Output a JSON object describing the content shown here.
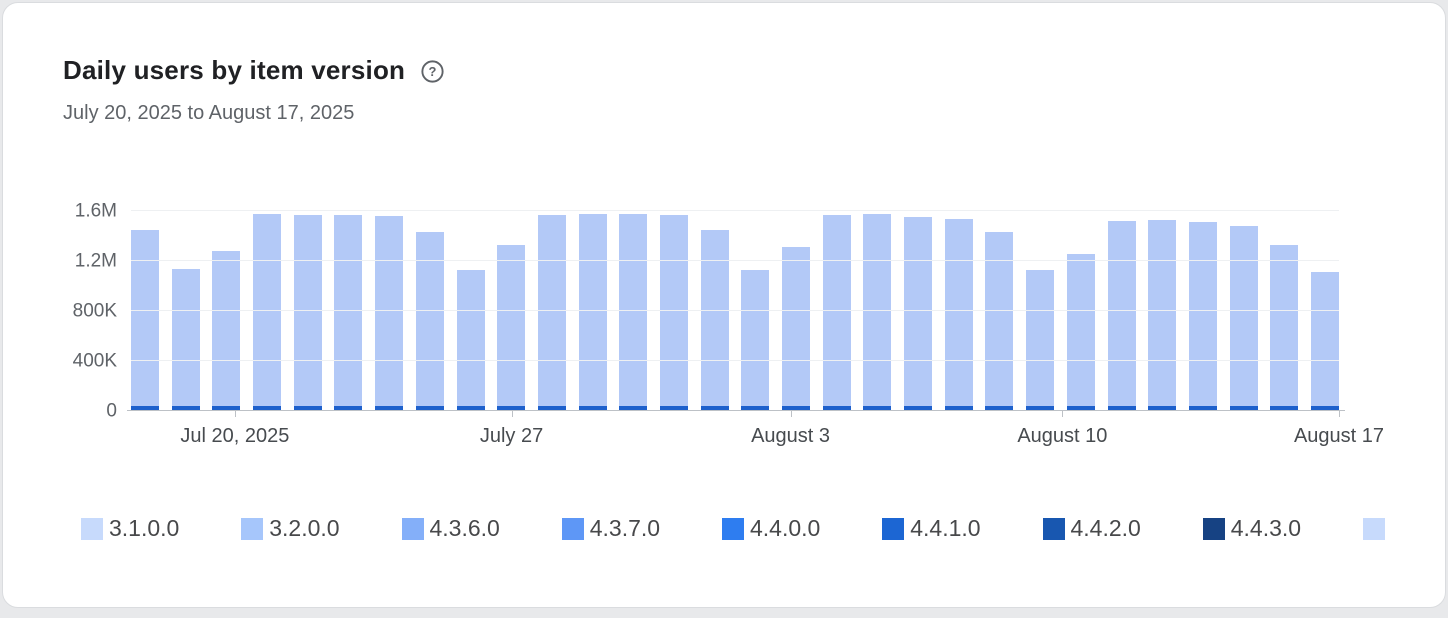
{
  "page": {
    "title": "Daily users by item version",
    "date_range": "July 20, 2025 to August 17, 2025"
  },
  "icons": {
    "help": "help-circle-outline"
  },
  "colors": {
    "axis": "#bdc1c6",
    "grid": "#eef0f2",
    "text_secondary": "#5f6368",
    "card_background": "#ffffff",
    "page_background": "#e8e9eb"
  },
  "chart_data": {
    "type": "bar",
    "stacked": true,
    "title": "Daily users by item version",
    "subtitle": "July 20, 2025 to August 17, 2025",
    "xlabel": "",
    "ylabel": "",
    "ylim": [
      0,
      1600000
    ],
    "grid": true,
    "legend_position": "bottom",
    "y_ticks": [
      {
        "label": "1.6M",
        "value": 1600000
      },
      {
        "label": "1.2M",
        "value": 1200000
      },
      {
        "label": "800K",
        "value": 800000
      },
      {
        "label": "400K",
        "value": 400000
      },
      {
        "label": "0",
        "value": 0
      }
    ],
    "x_ticks": [
      {
        "label": "Jul 20, 2025",
        "pos": 0.086
      },
      {
        "label": "July 27",
        "pos": 0.315
      },
      {
        "label": "August 3",
        "pos": 0.546
      },
      {
        "label": "August 10",
        "pos": 0.771
      },
      {
        "label": "August 17",
        "pos": 1.0
      }
    ],
    "totals": [
      1450000,
      1140000,
      1280000,
      1580000,
      1570000,
      1570000,
      1560000,
      1430000,
      1130000,
      1330000,
      1570000,
      1580000,
      1580000,
      1570000,
      1450000,
      1130000,
      1310000,
      1570000,
      1580000,
      1550000,
      1540000,
      1430000,
      1130000,
      1260000,
      1520000,
      1530000,
      1510000,
      1480000,
      1330000,
      1110000
    ],
    "series_bottom_to_top": [
      {
        "name": "4.4.3.0",
        "color": "#164283",
        "values": [
          12000,
          12000,
          12000,
          12000,
          12000,
          12000,
          12000,
          12000,
          12000,
          12000,
          12000,
          12000,
          12000,
          12000,
          12000,
          12000,
          12000,
          12000,
          12000,
          12000,
          12000,
          12000,
          12000,
          12000,
          12000,
          12000,
          12000,
          12000,
          12000,
          12000
        ]
      },
      {
        "name": "4.4.1.0",
        "color": "#1d60cc",
        "values": [
          26000,
          26000,
          26000,
          26000,
          26000,
          26000,
          26000,
          26000,
          26000,
          26000,
          26000,
          26000,
          26000,
          26000,
          26000,
          26000,
          26000,
          26000,
          26000,
          26000,
          26000,
          26000,
          26000,
          26000,
          26000,
          26000,
          26000,
          26000,
          26000,
          26000
        ]
      },
      {
        "name": "3.2.0.0",
        "color": "#b3c9f7",
        "values": [
          1412000,
          1102000,
          1242000,
          1542000,
          1532000,
          1532000,
          1522000,
          1392000,
          1092000,
          1292000,
          1532000,
          1542000,
          1542000,
          1532000,
          1412000,
          1092000,
          1272000,
          1532000,
          1542000,
          1512000,
          1502000,
          1392000,
          1092000,
          1222000,
          1482000,
          1492000,
          1472000,
          1442000,
          1292000,
          1072000
        ]
      }
    ],
    "legend": [
      {
        "label": "3.1.0.0",
        "color": "#c7dafc"
      },
      {
        "label": "3.2.0.0",
        "color": "#a6c6fb"
      },
      {
        "label": "4.3.6.0",
        "color": "#84aff9"
      },
      {
        "label": "4.3.7.0",
        "color": "#5e97f6"
      },
      {
        "label": "4.4.0.0",
        "color": "#2e7df0"
      },
      {
        "label": "4.4.1.0",
        "color": "#1c66d3"
      },
      {
        "label": "4.4.2.0",
        "color": "#1857b0"
      },
      {
        "label": "4.4.3.0",
        "color": "#164283"
      },
      {
        "label": "",
        "color": "#c7dafc"
      }
    ]
  }
}
